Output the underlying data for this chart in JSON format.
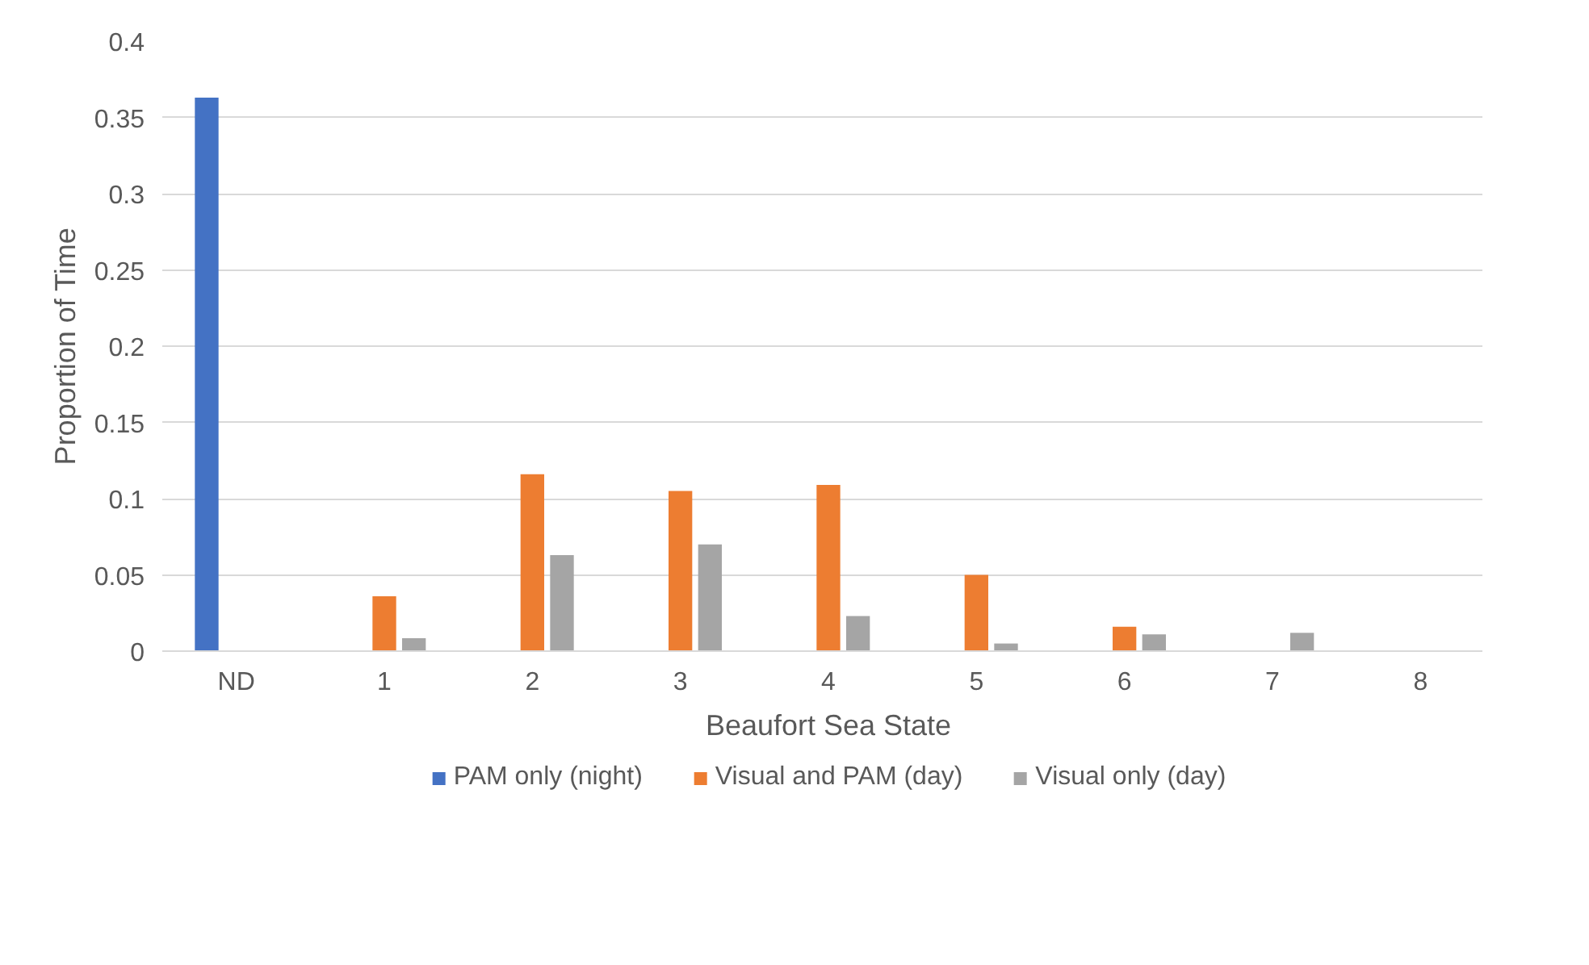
{
  "chart_data": {
    "type": "bar",
    "xlabel": "Beaufort Sea State",
    "ylabel": "Proportion of Time",
    "categories": [
      "ND",
      "1",
      "2",
      "3",
      "4",
      "5",
      "6",
      "7",
      "8"
    ],
    "series": [
      {
        "name": "PAM only (night)",
        "color": "#4472c4",
        "values": [
          0.363,
          0,
          0,
          0,
          0,
          0,
          0,
          0,
          0
        ]
      },
      {
        "name": "Visual and PAM (day)",
        "color": "#ed7d31",
        "values": [
          0,
          0.036,
          0.116,
          0.105,
          0.109,
          0.05,
          0.016,
          0,
          0
        ]
      },
      {
        "name": "Visual only (day)",
        "color": "#a5a5a5",
        "values": [
          0,
          0.0085,
          0.063,
          0.07,
          0.023,
          0.005,
          0.011,
          0.012,
          0
        ]
      }
    ],
    "ylim": [
      0,
      0.4
    ],
    "yticks": [
      {
        "value": 0,
        "label": "0"
      },
      0.05,
      0.1,
      0.15,
      0.2,
      0.25,
      0.3,
      0.35,
      0.4
    ],
    "grid": "y",
    "legend": "bottom"
  }
}
